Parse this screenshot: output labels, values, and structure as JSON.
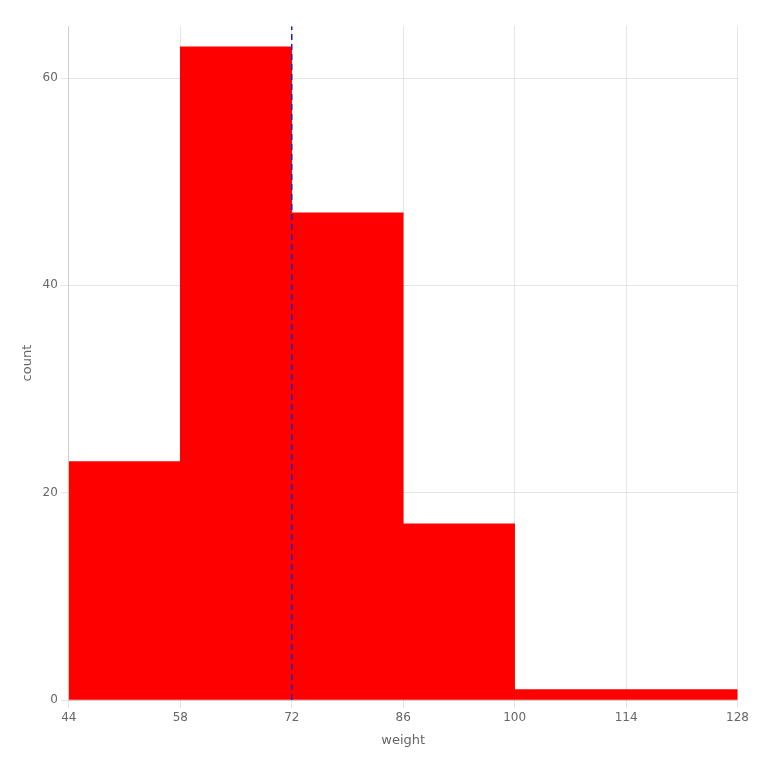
{
  "chart_data": {
    "type": "histogram",
    "bins": [
      44,
      58,
      72,
      86,
      100,
      114,
      128
    ],
    "values": [
      23,
      63,
      47,
      17,
      1,
      1
    ],
    "color": "#FF0000",
    "xlabel": "weight",
    "ylabel": "count",
    "xlim": [
      44,
      128
    ],
    "ylim": [
      0,
      65
    ],
    "xticks": [
      44,
      58,
      72,
      86,
      100,
      114,
      128
    ],
    "yticks": [
      0,
      20,
      40,
      60
    ],
    "grid": true,
    "vlines": [
      {
        "x": 72,
        "color": "#2222BB",
        "line_style": "dashed"
      }
    ]
  }
}
